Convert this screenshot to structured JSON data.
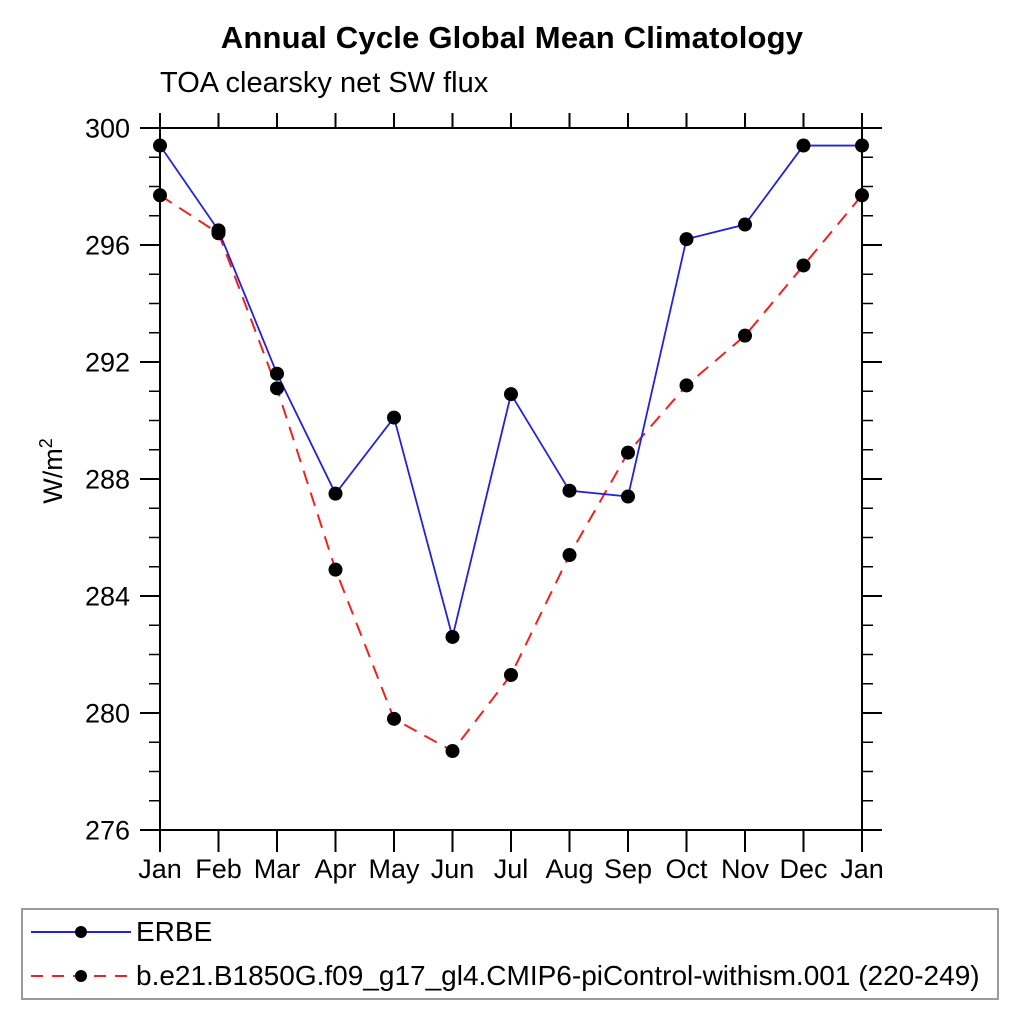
{
  "title": "Annual Cycle Global Mean Climatology",
  "subtitle": "TOA clearsky net SW flux",
  "y_axis": {
    "label_base": "W/m",
    "label_exponent": "2"
  },
  "marker_color": "#000000",
  "chart_data": {
    "type": "line",
    "categories": [
      "Jan",
      "Feb",
      "Mar",
      "Apr",
      "May",
      "Jun",
      "Jul",
      "Aug",
      "Sep",
      "Oct",
      "Nov",
      "Dec",
      "Jan"
    ],
    "series": [
      {
        "name": "ERBE",
        "color": "#2222dd",
        "line_style": "solid",
        "marker": "black-circle",
        "values": [
          299.4,
          296.5,
          291.6,
          287.5,
          290.1,
          282.6,
          290.9,
          287.6,
          287.4,
          296.2,
          296.7,
          299.4,
          299.4
        ]
      },
      {
        "name": "b.e21.B1850G.f09_g17_gl4.CMIP6-piControl-withism.001 (220-249)",
        "color": "#ee2222",
        "line_style": "dashed",
        "marker": "black-circle",
        "values": [
          297.7,
          296.4,
          291.1,
          284.9,
          279.8,
          278.7,
          281.3,
          285.4,
          288.9,
          291.2,
          292.9,
          295.3,
          297.7
        ]
      }
    ],
    "ylim": [
      276,
      300
    ],
    "ytick_major": [
      276,
      280,
      284,
      288,
      292,
      296,
      300
    ],
    "ytick_minor_step": 1,
    "grid": false,
    "legend_position": "bottom-left-box"
  }
}
